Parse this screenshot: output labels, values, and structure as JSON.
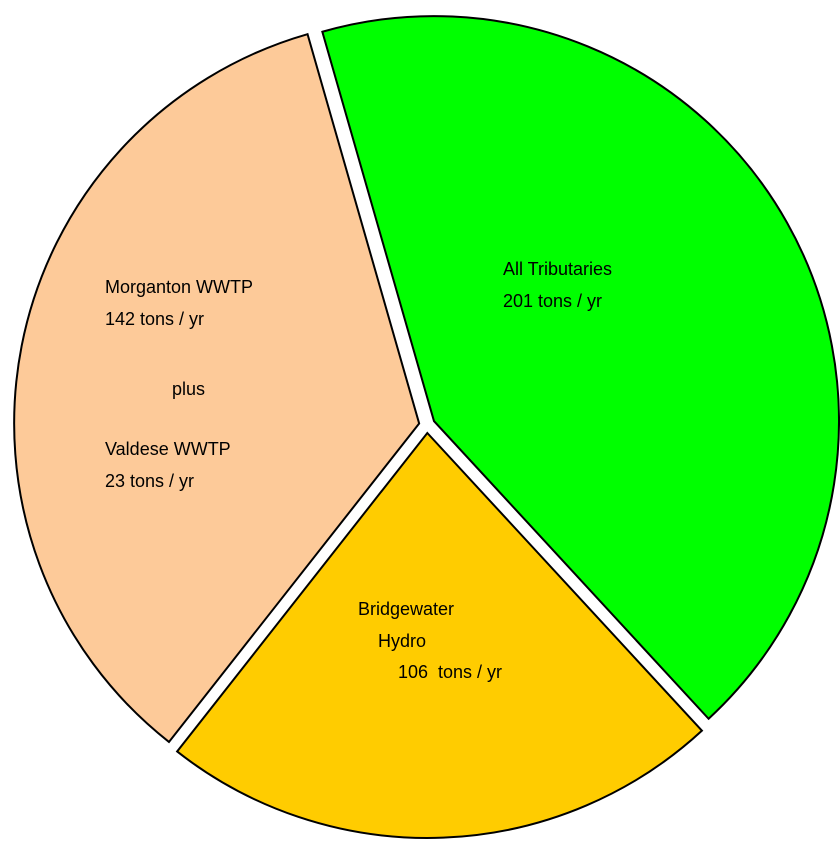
{
  "chart_data": {
    "type": "pie",
    "slices": [
      {
        "parts": [
          {
            "name_lines": [
              "All Tributaries"
            ],
            "value": 201,
            "value_label": "201 tons / yr"
          }
        ],
        "color": "#00ff00"
      },
      {
        "parts": [
          {
            "name_lines": [
              "Bridgewater",
              "Hydro"
            ],
            "value": 106,
            "value_label": "106  tons / yr"
          }
        ],
        "color": "#ffcc00"
      },
      {
        "parts": [
          {
            "name_lines": [
              "Morganton WWTP"
            ],
            "value": 142,
            "value_label": "142 tons / yr"
          },
          {
            "name_lines": [
              "Valdese WWTP"
            ],
            "value": 23,
            "value_label": "23 tons / yr"
          }
        ],
        "joiner": "plus",
        "color": "#fdca99"
      }
    ]
  }
}
